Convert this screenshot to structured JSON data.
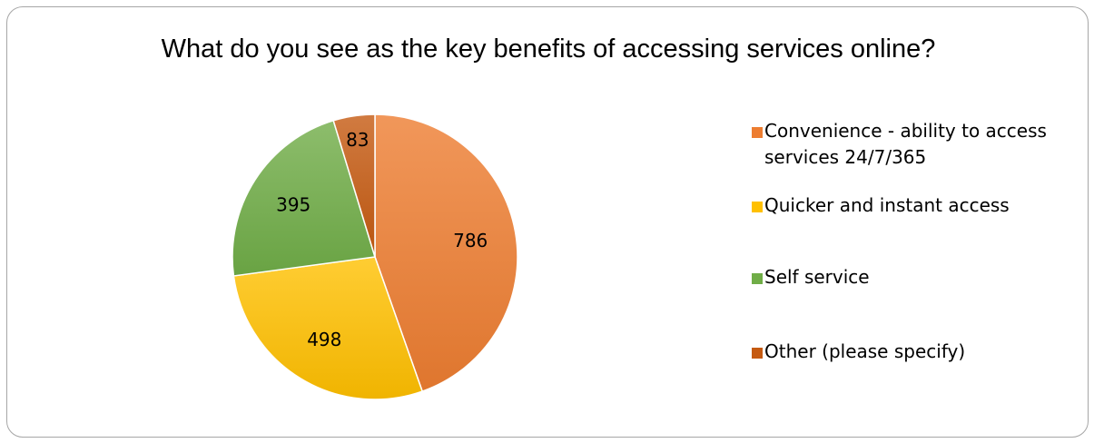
{
  "chart_data": {
    "type": "pie",
    "title": "What do you see as the key benefits of accessing services online?",
    "categories": [
      "Convenience - ability to access services 24/7/365",
      "Quicker and instant access",
      "Self service",
      "Other (please specify)"
    ],
    "values": [
      786,
      498,
      395,
      83
    ],
    "data_labels": [
      "786",
      "498",
      "395",
      "83"
    ],
    "colors": [
      "#ed7d31",
      "#ffc000",
      "#70ad47",
      "#c55a11"
    ],
    "legend_position": "right"
  }
}
